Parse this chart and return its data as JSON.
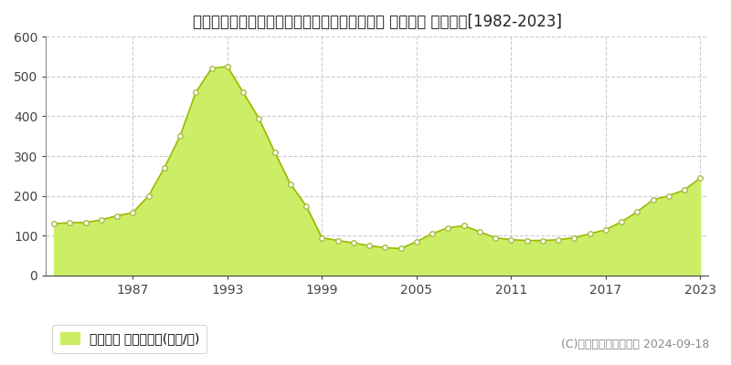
{
  "title": "北海道札幌市中央区大通西１４丁目１番１５外 公示地価 地価推移[1982-2023]",
  "years": [
    1982,
    1983,
    1984,
    1985,
    1986,
    1987,
    1988,
    1989,
    1990,
    1991,
    1992,
    1993,
    1994,
    1995,
    1996,
    1997,
    1998,
    1999,
    2000,
    2001,
    2002,
    2003,
    2004,
    2005,
    2006,
    2007,
    2008,
    2009,
    2010,
    2011,
    2012,
    2013,
    2014,
    2015,
    2016,
    2017,
    2018,
    2019,
    2020,
    2021,
    2022,
    2023
  ],
  "values": [
    130,
    133,
    133,
    140,
    150,
    158,
    200,
    270,
    350,
    460,
    520,
    525,
    460,
    395,
    310,
    230,
    175,
    95,
    88,
    82,
    75,
    70,
    68,
    85,
    105,
    120,
    125,
    110,
    95,
    90,
    88,
    88,
    90,
    95,
    105,
    115,
    135,
    160,
    190,
    200,
    215,
    245
  ],
  "fill_color": "#ccee66",
  "line_color": "#99bb00",
  "marker_color": "#ffffff",
  "marker_edge_color": "#aabb44",
  "background_color": "#ffffff",
  "grid_color": "#cccccc",
  "ylim": [
    0,
    600
  ],
  "yticks": [
    0,
    100,
    200,
    300,
    400,
    500,
    600
  ],
  "xtick_years": [
    1987,
    1993,
    1999,
    2005,
    2011,
    2017,
    2023
  ],
  "legend_label": "公示地価 平均坪単価(万円/坪)",
  "copyright_text": "(C)土地価格ドットコム 2024-09-18",
  "title_fontsize": 12,
  "axis_fontsize": 10,
  "legend_fontsize": 10,
  "copyright_fontsize": 9
}
